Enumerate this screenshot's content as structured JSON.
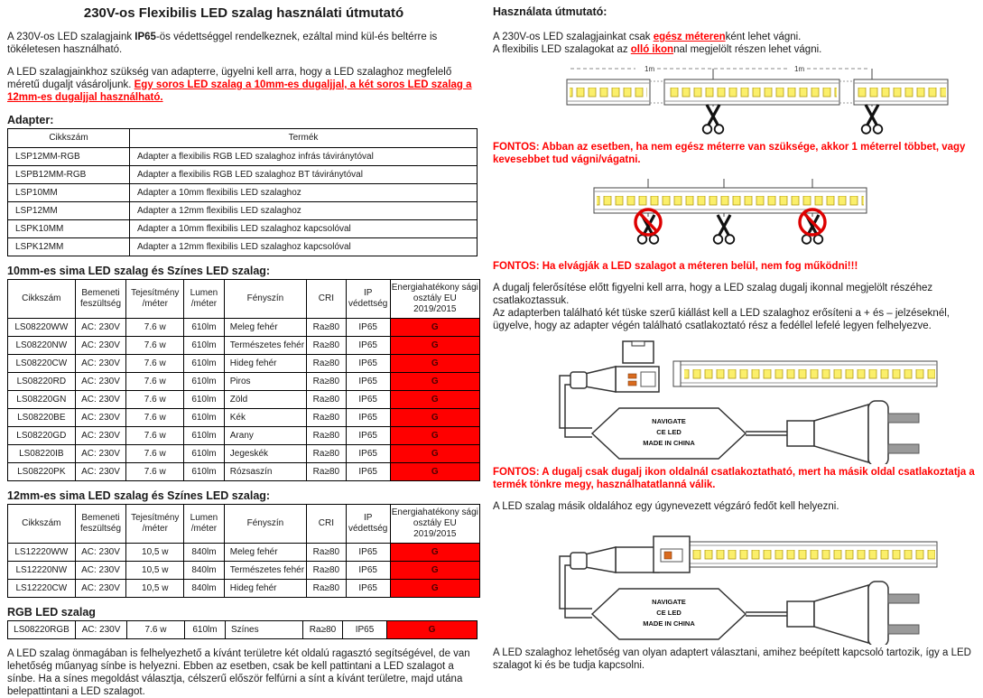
{
  "colors": {
    "accent_red": "#FF0000",
    "energy_cell_red": "#FF0000",
    "led_yellow": "#FBEF6A"
  },
  "left": {
    "title": "230V-os Flexibilis LED szalag használati útmutató",
    "para1": {
      "pre": "A 230V-os LED szalagjaink ",
      "bold": "IP65",
      "post": "-ös védettséggel rendelkeznek, ezáltal mind kül-és beltérre is tökéletesen használható."
    },
    "para2": {
      "pre": "A LED szalagjainkhoz szükség van adapterre, ügyelni kell arra, hogy a LED szalaghoz megfelelő méretű dugaljt vásároljunk. ",
      "red": "Egy soros LED szalag a 10mm-es dugaljjal, a két soros LED szalag a 12mm-es dugaljjal használható."
    },
    "adapter_heading": "Adapter:",
    "adapter_headers": [
      "Cikkszám",
      "Termék"
    ],
    "adapter_rows": [
      [
        "LSP12MM-RGB",
        "Adapter a flexibilis RGB LED szalaghoz infrás táviránytóval"
      ],
      [
        "LSPB12MM-RGB",
        "Adapter a flexibilis RGB LED szalaghoz BT táviránytóval"
      ],
      [
        "LSP10MM",
        "Adapter a 10mm flexibilis LED szalaghoz"
      ],
      [
        "LSP12MM",
        "Adapter a 12mm flexibilis LED szalaghoz"
      ],
      [
        "LSPK10MM",
        "Adapter a 10mm flexibilis LED szalaghoz kapcsolóval"
      ],
      [
        "LSPK12MM",
        "Adapter a 12mm flexibilis LED szalaghoz kapcsolóval"
      ]
    ],
    "heading10": "10mm-es sima LED szalag és Színes LED szalag:",
    "spec_headers": [
      "Cikkszám",
      "Bemeneti feszültség",
      "Tejesítmény /méter",
      "Lumen /méter",
      "Fényszín",
      "CRI",
      "IP védettség",
      "Energiahatékony sági osztály EU 2019/2015"
    ],
    "rows10": [
      [
        "LS08220WW",
        "AC: 230V",
        "7.6 w",
        "610lm",
        "Meleg fehér",
        "Ra≥80",
        "IP65",
        "G"
      ],
      [
        "LS08220NW",
        "AC: 230V",
        "7.6 w",
        "610lm",
        "Természetes fehér",
        "Ra≥80",
        "IP65",
        "G"
      ],
      [
        "LS08220CW",
        "AC: 230V",
        "7.6 w",
        "610lm",
        "Hideg fehér",
        "Ra≥80",
        "IP65",
        "G"
      ],
      [
        "LS08220RD",
        "AC: 230V",
        "7.6 w",
        "610lm",
        "Piros",
        "Ra≥80",
        "IP65",
        "G"
      ],
      [
        "LS08220GN",
        "AC: 230V",
        "7.6 w",
        "610lm",
        "Zöld",
        "Ra≥80",
        "IP65",
        "G"
      ],
      [
        "LS08220BE",
        "AC: 230V",
        "7.6 w",
        "610lm",
        "Kék",
        "Ra≥80",
        "IP65",
        "G"
      ],
      [
        "LS08220GD",
        "AC: 230V",
        "7.6 w",
        "610lm",
        "Arany",
        "Ra≥80",
        "IP65",
        "G"
      ],
      [
        "LS08220IB",
        "AC: 230V",
        "7.6 w",
        "610lm",
        "Jegeskék",
        "Ra≥80",
        "IP65",
        "G"
      ],
      [
        "LS08220PK",
        "AC: 230V",
        "7.6 w",
        "610lm",
        "Rózsaszín",
        "Ra≥80",
        "IP65",
        "G"
      ]
    ],
    "heading12": "12mm-es sima LED szalag és Színes LED szalag:",
    "rows12": [
      [
        "LS12220WW",
        "AC: 230V",
        "10,5 w",
        "840lm",
        "Meleg fehér",
        "Ra≥80",
        "IP65",
        "G"
      ],
      [
        "LS12220NW",
        "AC: 230V",
        "10,5 w",
        "840lm",
        "Természetes fehér",
        "Ra≥80",
        "IP65",
        "G"
      ],
      [
        "LS12220CW",
        "AC: 230V",
        "10,5 w",
        "840lm",
        "Hideg fehér",
        "Ra≥80",
        "IP65",
        "G"
      ]
    ],
    "rgb_heading": "RGB LED szalag",
    "rgb_rows": [
      [
        "LS08220RGB",
        "AC: 230V",
        "7.6 w",
        "610lm",
        "Színes",
        "Ra≥80",
        "IP65",
        "G"
      ]
    ],
    "para3": "A LED szalag önmagában is felhelyezhető a kívánt területre két oldalú ragasztó segítségével, de van lehetőség műanyag sínbe is helyezni. Ebben az esetben, csak be kell pattintani a LED szalagot a sínbe. Ha a sínes megoldást választja, célszerű először felfúrni a sínt a kívánt területre, majd utána belepattintani a LED szalagot."
  },
  "right": {
    "heading": "Használata útmutató:",
    "line1": {
      "pre": "A 230V-os LED szalagjainkat csak ",
      "red": "egész méteren",
      "post": "ként lehet vágni."
    },
    "line2": {
      "pre": "A flexibilis LED szalagokat az ",
      "red": "olló ikon",
      "post": "nal megjelölt részen lehet vágni."
    },
    "fontos1": "FONTOS: Abban az esetben, ha nem egész méterre van szüksége, akkor 1 méterrel többet, vagy kevesebbet tud vágni/vágatni.",
    "fontos2": "FONTOS: Ha elvágják a LED szalagot a méteren belül, nem fog működni!!!",
    "para1a": "A dugalj felerősítése előtt figyelni kell arra, hogy a LED szalag dugalj ikonnal megjelölt részéhez csatlakoztassuk.",
    "para1b": "Az adapterben található két tüske szerű kiállást kell a LED szalaghoz erősíteni a + és – jelzéseknél, ügyelve, hogy az adapter végén található csatlakoztató rész a fedéllel lefelé legyen felhelyezve.",
    "fontos3": "FONTOS: A dugalj csak dugalj ikon oldalnál csatlakoztatható, mert ha másik oldal csatlakoztatja a termék tönkre megy, használhatatlanná válik.",
    "para2": "A LED szalag másik oldalához egy úgynevezett végzáró fedőt kell helyezni.",
    "para3": "A LED szalaghoz lehetőség van olyan adaptert választani, amihez beépített kapcsoló tartozik, így a LED szalagot ki és be tudja kapcsolni.",
    "meter_label": "1m",
    "plug_label": {
      "l1": "NAVIGATE",
      "l2": "CE  LED",
      "l3": "MADE IN CHINA"
    }
  }
}
